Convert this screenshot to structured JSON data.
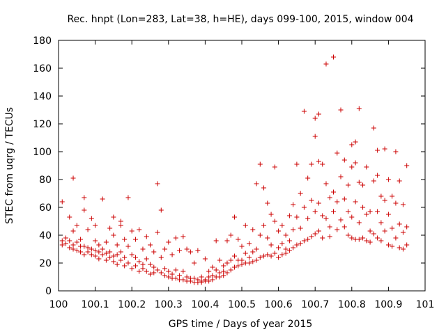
{
  "chart_data": {
    "type": "scatter",
    "title": "Rec. hnpt (Lon=283, Lat=38, h=HE), days 099-100, 2015, window 004",
    "xlabel": "GPS time / Days of year 2015",
    "ylabel": "STEC from uqrg / TECUs",
    "xlim": [
      100,
      101
    ],
    "ylim": [
      0,
      180
    ],
    "xticks": [
      100,
      100.1,
      100.2,
      100.3,
      100.4,
      100.5,
      100.6,
      100.7,
      100.8,
      100.9,
      101
    ],
    "xtick_labels": [
      "100",
      "100.1",
      "100.2",
      "100.3",
      "100.4",
      "100.5",
      "100.6",
      "100.7",
      "100.8",
      "100.9",
      "101"
    ],
    "yticks": [
      0,
      20,
      40,
      60,
      80,
      100,
      120,
      140,
      160,
      180
    ],
    "ytick_labels": [
      "0",
      "20",
      "40",
      "60",
      "80",
      "100",
      "120",
      "140",
      "160",
      "180"
    ],
    "marker": "+",
    "color": "#cc0000",
    "series": [
      {
        "name": "STEC",
        "points": [
          [
            100.01,
            64
          ],
          [
            100.01,
            36
          ],
          [
            100.01,
            33
          ],
          [
            100.02,
            38
          ],
          [
            100.02,
            34
          ],
          [
            100.03,
            53
          ],
          [
            100.03,
            36
          ],
          [
            100.03,
            31
          ],
          [
            100.04,
            43
          ],
          [
            100.04,
            33
          ],
          [
            100.04,
            30
          ],
          [
            100.04,
            81
          ],
          [
            100.05,
            35
          ],
          [
            100.05,
            29
          ],
          [
            100.05,
            47
          ],
          [
            100.06,
            37
          ],
          [
            100.06,
            32
          ],
          [
            100.06,
            28
          ],
          [
            100.07,
            58
          ],
          [
            100.07,
            32
          ],
          [
            100.07,
            26
          ],
          [
            100.07,
            67
          ],
          [
            100.08,
            31
          ],
          [
            100.08,
            28
          ],
          [
            100.08,
            44
          ],
          [
            100.09,
            52
          ],
          [
            100.09,
            30
          ],
          [
            100.09,
            26
          ],
          [
            100.1,
            47
          ],
          [
            100.1,
            29
          ],
          [
            100.1,
            25
          ],
          [
            100.1,
            36
          ],
          [
            100.11,
            33
          ],
          [
            100.11,
            28
          ],
          [
            100.11,
            23
          ],
          [
            100.12,
            66
          ],
          [
            100.12,
            30
          ],
          [
            100.12,
            26
          ],
          [
            100.13,
            35
          ],
          [
            100.13,
            27
          ],
          [
            100.13,
            22
          ],
          [
            100.14,
            45
          ],
          [
            100.14,
            28
          ],
          [
            100.14,
            24
          ],
          [
            100.15,
            53
          ],
          [
            100.15,
            40
          ],
          [
            100.15,
            25
          ],
          [
            100.15,
            21
          ],
          [
            100.16,
            33
          ],
          [
            100.16,
            26
          ],
          [
            100.16,
            19
          ],
          [
            100.17,
            50
          ],
          [
            100.17,
            28
          ],
          [
            100.17,
            22
          ],
          [
            100.17,
            47
          ],
          [
            100.18,
            37
          ],
          [
            100.18,
            24
          ],
          [
            100.18,
            18
          ],
          [
            100.19,
            67
          ],
          [
            100.19,
            32
          ],
          [
            100.19,
            20
          ],
          [
            100.2,
            43
          ],
          [
            100.2,
            26
          ],
          [
            100.2,
            16
          ],
          [
            100.21,
            37
          ],
          [
            100.21,
            24
          ],
          [
            100.21,
            18
          ],
          [
            100.22,
            44
          ],
          [
            100.22,
            21
          ],
          [
            100.22,
            14
          ],
          [
            100.23,
            30
          ],
          [
            100.23,
            19
          ],
          [
            100.23,
            16
          ],
          [
            100.24,
            39
          ],
          [
            100.24,
            23
          ],
          [
            100.24,
            14
          ],
          [
            100.25,
            33
          ],
          [
            100.25,
            19
          ],
          [
            100.25,
            12
          ],
          [
            100.26,
            28
          ],
          [
            100.26,
            17
          ],
          [
            100.26,
            13
          ],
          [
            100.27,
            77
          ],
          [
            100.27,
            42
          ],
          [
            100.27,
            15
          ],
          [
            100.28,
            58
          ],
          [
            100.28,
            24
          ],
          [
            100.28,
            13
          ],
          [
            100.29,
            30
          ],
          [
            100.29,
            16
          ],
          [
            100.29,
            11
          ],
          [
            100.3,
            35
          ],
          [
            100.3,
            14
          ],
          [
            100.3,
            10
          ],
          [
            100.31,
            26
          ],
          [
            100.31,
            12
          ],
          [
            100.31,
            9
          ],
          [
            100.32,
            38
          ],
          [
            100.32,
            15
          ],
          [
            100.32,
            9
          ],
          [
            100.33,
            29
          ],
          [
            100.33,
            11
          ],
          [
            100.33,
            8
          ],
          [
            100.34,
            39
          ],
          [
            100.34,
            14
          ],
          [
            100.34,
            8
          ],
          [
            100.35,
            30
          ],
          [
            100.35,
            10
          ],
          [
            100.35,
            7
          ],
          [
            100.36,
            28
          ],
          [
            100.36,
            9
          ],
          [
            100.36,
            7
          ],
          [
            100.37,
            20
          ],
          [
            100.37,
            9
          ],
          [
            100.37,
            6
          ],
          [
            100.38,
            29
          ],
          [
            100.38,
            8
          ],
          [
            100.38,
            6
          ],
          [
            100.39,
            10
          ],
          [
            100.39,
            7
          ],
          [
            100.39,
            6
          ],
          [
            100.4,
            23
          ],
          [
            100.4,
            8
          ],
          [
            100.4,
            7
          ],
          [
            100.41,
            14
          ],
          [
            100.41,
            10
          ],
          [
            100.41,
            7
          ],
          [
            100.42,
            17
          ],
          [
            100.42,
            11
          ],
          [
            100.42,
            8
          ],
          [
            100.43,
            36
          ],
          [
            100.43,
            15
          ],
          [
            100.43,
            10
          ],
          [
            100.44,
            22
          ],
          [
            100.44,
            13
          ],
          [
            100.44,
            10
          ],
          [
            100.45,
            18
          ],
          [
            100.45,
            14
          ],
          [
            100.45,
            11
          ],
          [
            100.46,
            36
          ],
          [
            100.46,
            20
          ],
          [
            100.46,
            13
          ],
          [
            100.47,
            40
          ],
          [
            100.47,
            22
          ],
          [
            100.47,
            15
          ],
          [
            100.48,
            53
          ],
          [
            100.48,
            25
          ],
          [
            100.48,
            17
          ],
          [
            100.49,
            37
          ],
          [
            100.49,
            22
          ],
          [
            100.49,
            18
          ],
          [
            100.5,
            32
          ],
          [
            100.5,
            22
          ],
          [
            100.5,
            19
          ],
          [
            100.51,
            47
          ],
          [
            100.51,
            27
          ],
          [
            100.51,
            20
          ],
          [
            100.52,
            34
          ],
          [
            100.52,
            24
          ],
          [
            100.52,
            20
          ],
          [
            100.53,
            44
          ],
          [
            100.53,
            28
          ],
          [
            100.53,
            21
          ],
          [
            100.54,
            77
          ],
          [
            100.54,
            30
          ],
          [
            100.54,
            22
          ],
          [
            100.55,
            91
          ],
          [
            100.55,
            40
          ],
          [
            100.55,
            24
          ],
          [
            100.56,
            74
          ],
          [
            100.56,
            47
          ],
          [
            100.56,
            25
          ],
          [
            100.57,
            63
          ],
          [
            100.57,
            38
          ],
          [
            100.57,
            26
          ],
          [
            100.58,
            55
          ],
          [
            100.58,
            33
          ],
          [
            100.58,
            25
          ],
          [
            100.59,
            89
          ],
          [
            100.59,
            50
          ],
          [
            100.59,
            27
          ],
          [
            100.6,
            43
          ],
          [
            100.6,
            31
          ],
          [
            100.6,
            24
          ],
          [
            100.61,
            47
          ],
          [
            100.61,
            34
          ],
          [
            100.61,
            26
          ],
          [
            100.62,
            40
          ],
          [
            100.62,
            30
          ],
          [
            100.62,
            27
          ],
          [
            100.63,
            54
          ],
          [
            100.63,
            36
          ],
          [
            100.63,
            29
          ],
          [
            100.64,
            62
          ],
          [
            100.64,
            44
          ],
          [
            100.64,
            31
          ],
          [
            100.65,
            91
          ],
          [
            100.65,
            53
          ],
          [
            100.65,
            33
          ],
          [
            100.66,
            70
          ],
          [
            100.66,
            45
          ],
          [
            100.66,
            34
          ],
          [
            100.67,
            129
          ],
          [
            100.67,
            60
          ],
          [
            100.67,
            36
          ],
          [
            100.68,
            81
          ],
          [
            100.68,
            52
          ],
          [
            100.68,
            37
          ],
          [
            100.69,
            91
          ],
          [
            100.69,
            65
          ],
          [
            100.69,
            39
          ],
          [
            100.7,
            124
          ],
          [
            100.7,
            111
          ],
          [
            100.7,
            57
          ],
          [
            100.7,
            41
          ],
          [
            100.71,
            93
          ],
          [
            100.71,
            127
          ],
          [
            100.71,
            63
          ],
          [
            100.71,
            43
          ],
          [
            100.72,
            91
          ],
          [
            100.72,
            54
          ],
          [
            100.72,
            38
          ],
          [
            100.73,
            163
          ],
          [
            100.73,
            77
          ],
          [
            100.73,
            52
          ],
          [
            100.74,
            67
          ],
          [
            100.74,
            46
          ],
          [
            100.74,
            39
          ],
          [
            100.75,
            168
          ],
          [
            100.75,
            71
          ],
          [
            100.75,
            57
          ],
          [
            100.76,
            99
          ],
          [
            100.76,
            64
          ],
          [
            100.76,
            44
          ],
          [
            100.77,
            130
          ],
          [
            100.77,
            82
          ],
          [
            100.77,
            51
          ],
          [
            100.78,
            94
          ],
          [
            100.78,
            66
          ],
          [
            100.78,
            46
          ],
          [
            100.79,
            76
          ],
          [
            100.79,
            57
          ],
          [
            100.79,
            40
          ],
          [
            100.8,
            105
          ],
          [
            100.8,
            89
          ],
          [
            100.8,
            53
          ],
          [
            100.8,
            38
          ],
          [
            100.81,
            107
          ],
          [
            100.81,
            92
          ],
          [
            100.81,
            64
          ],
          [
            100.81,
            37
          ],
          [
            100.82,
            131
          ],
          [
            100.82,
            78
          ],
          [
            100.82,
            49
          ],
          [
            100.82,
            37
          ],
          [
            100.83,
            76
          ],
          [
            100.83,
            60
          ],
          [
            100.83,
            38
          ],
          [
            100.84,
            89
          ],
          [
            100.84,
            55
          ],
          [
            100.84,
            36
          ],
          [
            100.85,
            57
          ],
          [
            100.85,
            43
          ],
          [
            100.85,
            35
          ],
          [
            100.86,
            117
          ],
          [
            100.86,
            79
          ],
          [
            100.86,
            41
          ],
          [
            100.87,
            83
          ],
          [
            100.87,
            101
          ],
          [
            100.87,
            57
          ],
          [
            100.87,
            38
          ],
          [
            100.88,
            68
          ],
          [
            100.88,
            49
          ],
          [
            100.88,
            36
          ],
          [
            100.89,
            102
          ],
          [
            100.89,
            65
          ],
          [
            100.89,
            43
          ],
          [
            100.9,
            80
          ],
          [
            100.9,
            55
          ],
          [
            100.9,
            33
          ],
          [
            100.91,
            68
          ],
          [
            100.91,
            45
          ],
          [
            100.91,
            32
          ],
          [
            100.92,
            100
          ],
          [
            100.92,
            63
          ],
          [
            100.92,
            38
          ],
          [
            100.93,
            79
          ],
          [
            100.93,
            48
          ],
          [
            100.93,
            31
          ],
          [
            100.94,
            62
          ],
          [
            100.94,
            42
          ],
          [
            100.94,
            30
          ],
          [
            100.95,
            90
          ],
          [
            100.95,
            46
          ],
          [
            100.95,
            33
          ]
        ]
      }
    ]
  }
}
